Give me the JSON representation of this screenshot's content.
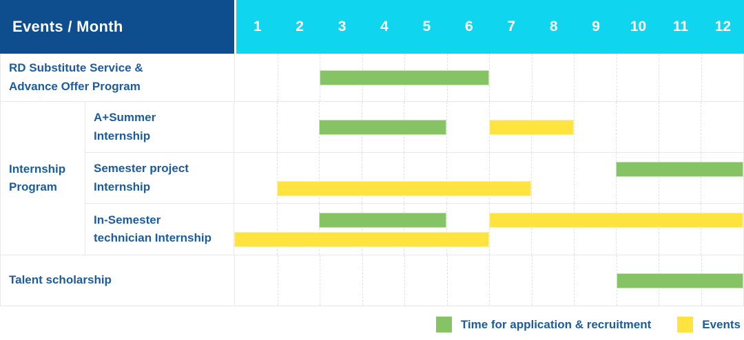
{
  "header": {
    "title": "Events / Month",
    "months": [
      "1",
      "2",
      "3",
      "4",
      "5",
      "6",
      "7",
      "8",
      "9",
      "10",
      "11",
      "12"
    ]
  },
  "labels": {
    "row_rd": "RD Substitute Service &\nAdvance Offer Program",
    "group_internship": "Internship\nProgram",
    "row_summer": "A+Summer\nInternship",
    "row_semester_project": "Semester project\nInternship",
    "row_in_semester": "In-Semester\ntechnician Internship",
    "row_talent": "Talent scholarship"
  },
  "colors": {
    "header_bg": "#0E4D8E",
    "months_bg": "#10D5EE",
    "label_text": "#1B5B9E",
    "green": "#86C364",
    "yellow": "#FFE33E",
    "grid": "#E2E2E2"
  },
  "legend": {
    "items": [
      {
        "series": "Time for application & recruitment",
        "label": "Time for application & recruitment",
        "color": "#86C364"
      },
      {
        "series": "Events",
        "label": "Events",
        "color": "#FFE33E"
      }
    ]
  },
  "chart_data": {
    "type": "bar",
    "subtype": "gantt-schedule",
    "title": "Events / Month",
    "x_categories": [
      "1",
      "2",
      "3",
      "4",
      "5",
      "6",
      "7",
      "8",
      "9",
      "10",
      "11",
      "12"
    ],
    "x_range": [
      1,
      12
    ],
    "legend_entries": [
      "Time for application & recruitment",
      "Events"
    ],
    "legend_position": "bottom-right",
    "grid": "vertical-dashed",
    "rows": [
      {
        "label": "RD Substitute Service & Advance Offer Program",
        "group": null,
        "lines": 1,
        "bars": [
          {
            "series": "Time for application & recruitment",
            "start_month": 3,
            "end_month": 6,
            "line": "center"
          }
        ]
      },
      {
        "label": "A+Summer Internship",
        "group": "Internship Program",
        "lines": 1,
        "bars": [
          {
            "series": "Time for application & recruitment",
            "start_month": 3,
            "end_month": 5,
            "line": "center"
          },
          {
            "series": "Events",
            "start_month": 7,
            "end_month": 8,
            "line": "center"
          }
        ]
      },
      {
        "label": "Semester project Internship",
        "group": "Internship Program",
        "lines": 2,
        "bars": [
          {
            "series": "Time for application & recruitment",
            "start_month": 10,
            "end_month": 12,
            "line": "top"
          },
          {
            "series": "Events",
            "start_month": 2,
            "end_month": 7,
            "line": "bottom"
          }
        ]
      },
      {
        "label": "In-Semester technician Internship",
        "group": "Internship Program",
        "lines": 2,
        "bars": [
          {
            "series": "Time for application & recruitment",
            "start_month": 3,
            "end_month": 5,
            "line": "top"
          },
          {
            "series": "Events",
            "start_month": 7,
            "end_month": 12,
            "line": "top"
          },
          {
            "series": "Events",
            "start_month": 1,
            "end_month": 6,
            "line": "bottom"
          }
        ]
      },
      {
        "label": "Talent scholarship",
        "group": null,
        "lines": 1,
        "bars": [
          {
            "series": "Time for application & recruitment",
            "start_month": 10,
            "end_month": 12,
            "line": "center"
          }
        ]
      }
    ]
  }
}
